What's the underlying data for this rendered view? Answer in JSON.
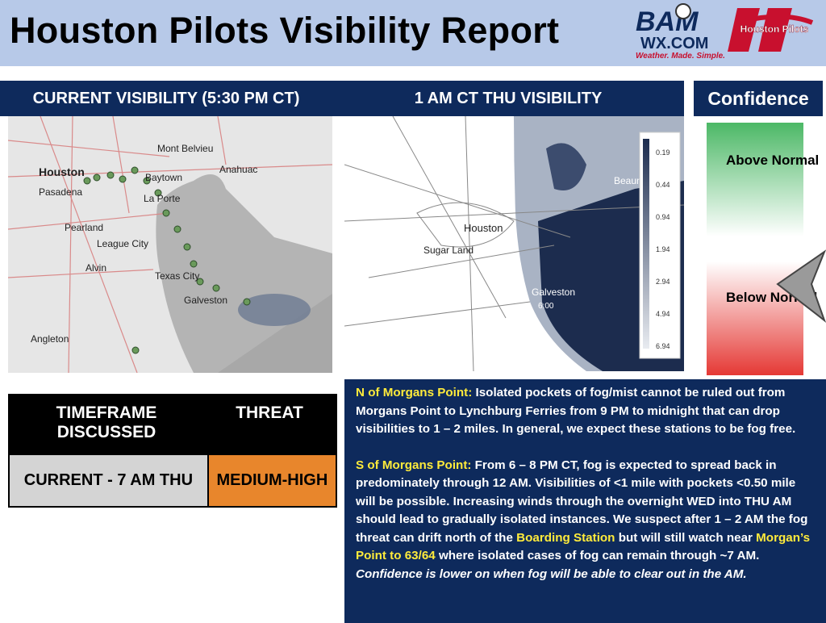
{
  "header": {
    "title": "Houston Pilots Visibility Report"
  },
  "logos": {
    "bam": "BAM",
    "wx": "WX.COM",
    "tagline": "Weather. Made. Simple.",
    "pilots": "Houston Pilots"
  },
  "current_map": {
    "title": "CURRENT VISIBILITY (5:30 PM CT)",
    "places": [
      "Houston",
      "Pasadena",
      "Baytown",
      "Mont Belvieu",
      "Anahuac",
      "La Porte",
      "Pearland",
      "League City",
      "Alvin",
      "Texas City",
      "Galveston",
      "Angleton"
    ]
  },
  "forecast_map": {
    "title": "1 AM CT THU VISIBILITY",
    "places": [
      "Houston",
      "Sugar Land",
      "Galveston",
      "Beaum",
      "6:00"
    ],
    "scale": [
      "0.19",
      "0.44",
      "0.94",
      "1.94",
      "2.94",
      "4.94",
      "6.94"
    ]
  },
  "confidence": {
    "title": "Confidence",
    "above": "Above Normal",
    "below": "Below Normal"
  },
  "table": {
    "header": [
      "TIMEFRAME DISCUSSED",
      "THREAT"
    ],
    "rows": [
      [
        "CURRENT - 7 AM THU",
        "MEDIUM-HIGH"
      ]
    ]
  },
  "discussion": [
    [
      {
        "text": "N of Morgans Point:",
        "style": "highlight"
      },
      {
        "text": " Isolated pockets of fog/mist cannot be ruled out from Morgans Point to Lynchburg Ferries from 9 PM to midnight that can drop visibilities to 1 – 2 miles. In general, we expect these stations to be fog free.",
        "style": "plain"
      }
    ],
    [
      {
        "text": "S of Morgans Point:",
        "style": "highlight"
      },
      {
        "text": " From 6 – 8 PM CT, fog is expected to spread back in predominately through 12 AM. Visibilities of <1 mile with pockets <0.50 mile will be possible. Increasing winds through the overnight WED into THU AM should lead to gradually isolated instances. We suspect after 1 – 2 AM the fog threat can drift north of the ",
        "style": "plain"
      },
      {
        "text": "Boarding Station",
        "style": "highlight"
      },
      {
        "text": " but will still watch near ",
        "style": "plain"
      },
      {
        "text": "Morgan’s Point to 63/64",
        "style": "highlight"
      },
      {
        "text": " where isolated cases of fog can remain through ~7 AM. ",
        "style": "plain"
      },
      {
        "text": "Confidence is lower on when fog will be able to clear out in the AM.",
        "style": "italic"
      }
    ]
  ]
}
